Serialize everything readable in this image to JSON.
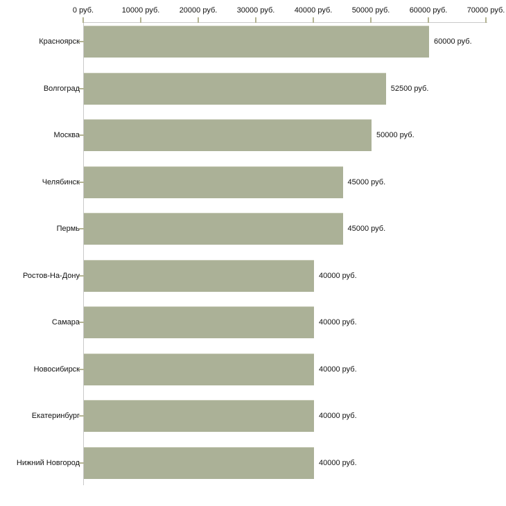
{
  "chart_data": {
    "type": "bar",
    "orientation": "horizontal",
    "title": "",
    "unit": "руб.",
    "categories": [
      "Красноярск",
      "Волгоград",
      "Москва",
      "Челябинск",
      "Пермь",
      "Ростов-На-Дону",
      "Самара",
      "Новосибирск",
      "Екатеринбург",
      "Нижний Новгород"
    ],
    "values": [
      60000,
      52500,
      50000,
      45000,
      45000,
      40000,
      40000,
      40000,
      40000,
      40000
    ],
    "value_labels": [
      "60000 руб.",
      "52500 руб.",
      "50000 руб.",
      "45000 руб.",
      "45000 руб.",
      "40000 руб.",
      "40000 руб.",
      "40000 руб.",
      "40000 руб.",
      "40000 руб."
    ],
    "x_axis": {
      "position": "top",
      "range": [
        0,
        70000
      ],
      "tick_interval": 10000,
      "tick_labels": [
        "0 руб.",
        "10000 руб.",
        "20000 руб.",
        "30000 руб.",
        "40000 руб.",
        "50000 руб.",
        "60000 руб.",
        "70000 руб."
      ]
    },
    "grid": "off",
    "legend": "none",
    "colors": {
      "bar_color": "#abb197",
      "bar_edge_color": "#c7cab6",
      "axis_color": "#c9c9c9",
      "tick_color": "#b3b392",
      "text_color": "#111111",
      "background": "#ffffff"
    }
  }
}
